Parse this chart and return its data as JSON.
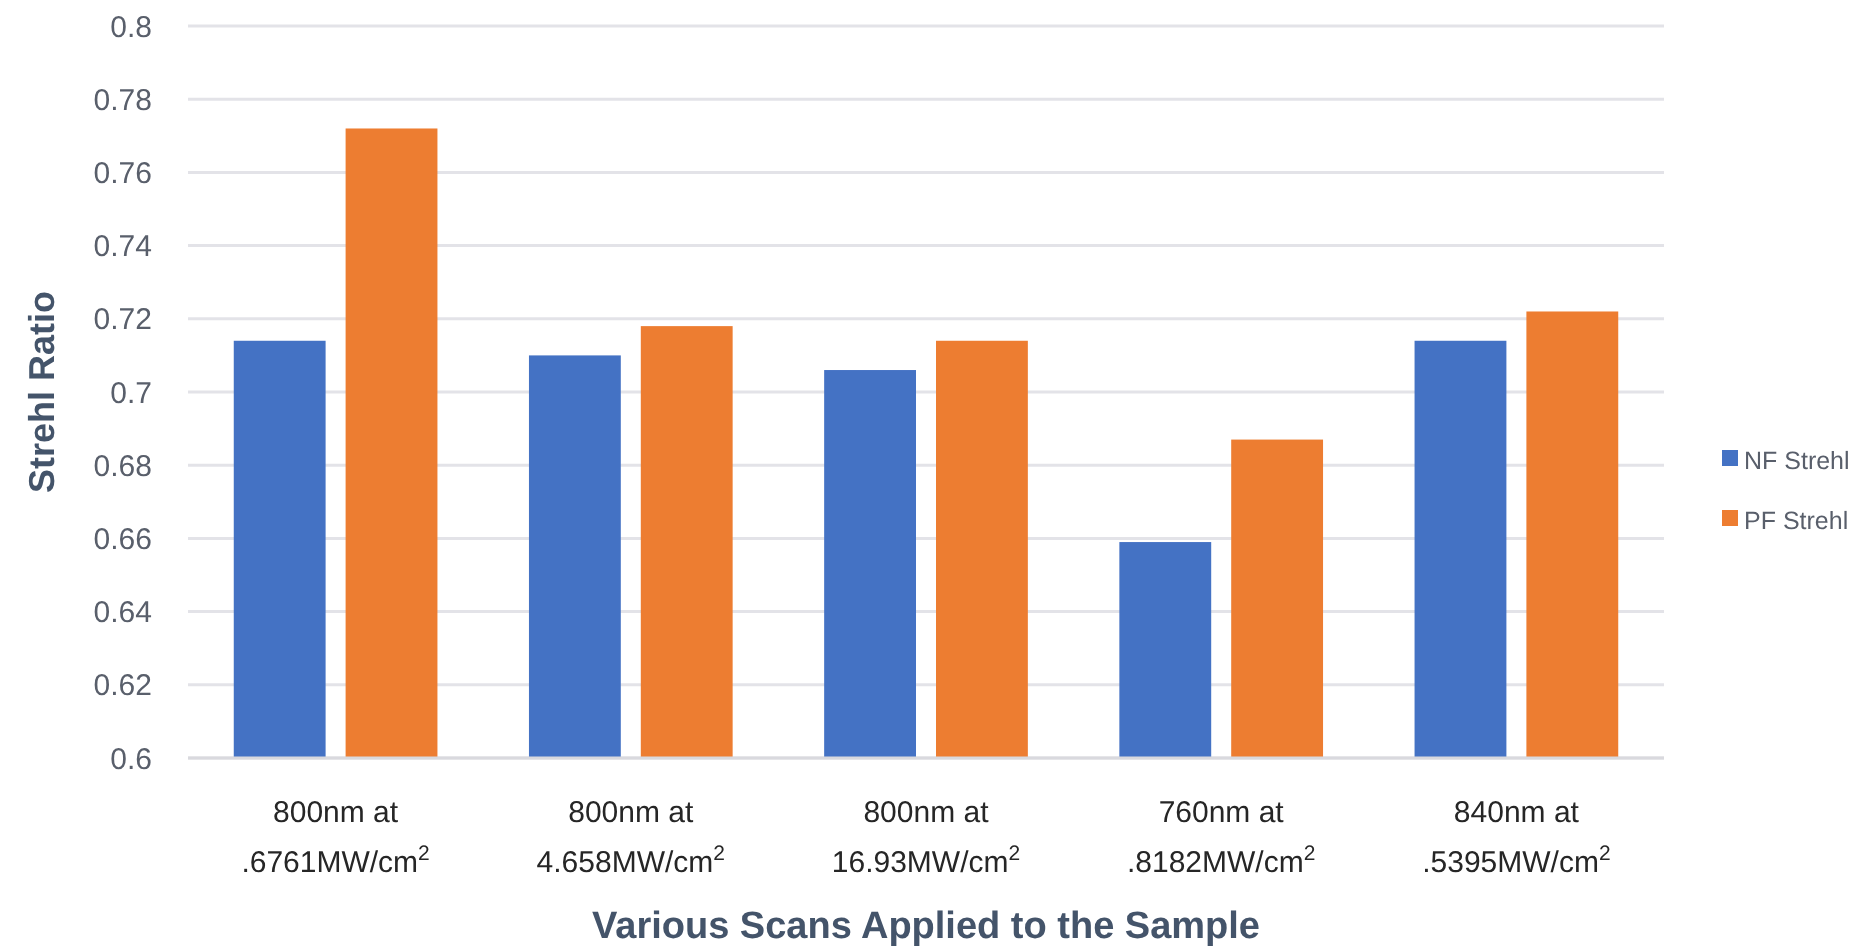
{
  "chart_data": {
    "type": "bar",
    "xlabel": "Various Scans Applied to the Sample",
    "ylabel": "Strehl Ratio",
    "categories": [
      "800nm at\n.6761MW/cm$^{2}$",
      "800nm at\n4.658MW/cm$^{2}$",
      "800nm at\n16.93MW/cm$^{2}$",
      "760nm at\n.8182MW/cm$^{2}$",
      "840nm at\n.5395MW/cm$^{2}$"
    ],
    "series": [
      {
        "name": "NF Strehl",
        "color": "#4472c4",
        "values": [
          0.714,
          0.71,
          0.706,
          0.659,
          0.714
        ]
      },
      {
        "name": "PF Strehl",
        "color": "#ed7d31",
        "values": [
          0.772,
          0.718,
          0.714,
          0.687,
          0.722
        ]
      }
    ],
    "ylim": [
      0.6,
      0.8
    ],
    "yticks": [
      0.6,
      0.62,
      0.64,
      0.66,
      0.68,
      0.7,
      0.72,
      0.74,
      0.76,
      0.78,
      0.8
    ],
    "grid": "y",
    "legend": "right"
  }
}
